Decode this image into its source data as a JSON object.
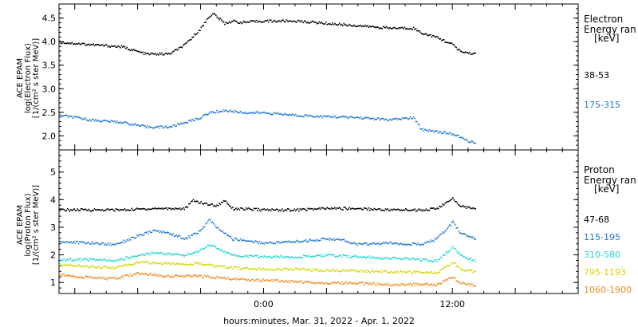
{
  "xlabel": "hours:minutes, Mar. 31, 2022 - Apr. 1, 2022",
  "x_ticks": [
    "0:00",
    "12:00"
  ],
  "chart_data": [
    {
      "type": "scatter",
      "ylabel_lines": [
        "ACE EPAM",
        "log(Electron Flux)",
        "[1/(cm² s ster MeV)]"
      ],
      "ylim": [
        1.7,
        4.8
      ],
      "y_ticks": [
        "2.0",
        "2.5",
        "3.0",
        "3.5",
        "4.0",
        "4.5"
      ],
      "xlim_hours": [
        -13,
        20
      ],
      "legend_title": [
        "Electron",
        "Energy ran",
        "[keV]"
      ],
      "series": [
        {
          "name": "38-53",
          "color": "#000000",
          "x": [
            -13,
            -11,
            -9,
            -7.5,
            -6,
            -5,
            -4,
            -3.5,
            -3.2,
            -2.5,
            -2,
            -1.5,
            0,
            2,
            4,
            6,
            8,
            9.5,
            10,
            11,
            12,
            12.5,
            13.5
          ],
          "y": [
            4.0,
            3.95,
            3.9,
            3.75,
            3.75,
            3.95,
            4.3,
            4.55,
            4.6,
            4.4,
            4.45,
            4.42,
            4.45,
            4.45,
            4.4,
            4.35,
            4.3,
            4.3,
            4.2,
            4.1,
            3.95,
            3.8,
            3.75
          ]
        },
        {
          "name": "175-315",
          "color": "#1e78d2",
          "x": [
            -13,
            -11,
            -9,
            -7.5,
            -6,
            -5,
            -4,
            -3.5,
            -2.5,
            -1,
            0,
            2,
            4,
            6,
            8,
            9.5,
            10,
            11,
            12,
            13,
            13.5
          ],
          "y": [
            2.45,
            2.35,
            2.3,
            2.2,
            2.2,
            2.3,
            2.4,
            2.5,
            2.55,
            2.5,
            2.5,
            2.45,
            2.42,
            2.4,
            2.35,
            2.4,
            2.15,
            2.1,
            2.05,
            1.9,
            1.85
          ]
        }
      ]
    },
    {
      "type": "scatter",
      "ylabel_lines": [
        "ACE EPAM",
        "log(Proton Flux)",
        "[1/(cm² s ster MeV)]"
      ],
      "ylim": [
        0.6,
        5.8
      ],
      "y_ticks": [
        "1",
        "2",
        "3",
        "4",
        "5"
      ],
      "xlim_hours": [
        -13,
        20
      ],
      "legend_title": [
        "Proton",
        "Energy ran",
        "[keV]"
      ],
      "series": [
        {
          "name": "47-68",
          "color": "#000000",
          "x": [
            -13,
            -11,
            -9,
            -7,
            -5,
            -4.5,
            -4,
            -3,
            -2.5,
            -2,
            0,
            2,
            4,
            6,
            8,
            10,
            11,
            12,
            12.5,
            13.5
          ],
          "y": [
            3.65,
            3.65,
            3.65,
            3.7,
            3.7,
            4.0,
            3.9,
            3.8,
            4.0,
            3.7,
            3.65,
            3.65,
            3.7,
            3.7,
            3.65,
            3.65,
            3.7,
            4.05,
            3.8,
            3.65
          ]
        },
        {
          "name": "115-195",
          "color": "#1e78d2",
          "x": [
            -13,
            -11,
            -9.5,
            -8,
            -7,
            -6,
            -5,
            -4,
            -3.5,
            -3,
            -2,
            0,
            2,
            4,
            5,
            6,
            8,
            10,
            11,
            12,
            12.5,
            13.5
          ],
          "y": [
            2.5,
            2.45,
            2.4,
            2.7,
            2.9,
            2.8,
            2.6,
            2.9,
            3.3,
            3.0,
            2.6,
            2.45,
            2.5,
            2.6,
            2.55,
            2.4,
            2.45,
            2.4,
            2.6,
            3.2,
            2.8,
            2.6
          ]
        },
        {
          "name": "310-580",
          "color": "#22d5d5",
          "x": [
            -13,
            -11,
            -9.5,
            -8,
            -7,
            -5,
            -4,
            -3.5,
            -2,
            0,
            2,
            4,
            6,
            8,
            10,
            11,
            12,
            12.5,
            13.5
          ],
          "y": [
            1.85,
            1.85,
            1.8,
            2.0,
            2.1,
            2.0,
            2.2,
            2.4,
            2.0,
            1.95,
            1.95,
            2.0,
            1.95,
            1.9,
            1.85,
            1.8,
            2.3,
            2.0,
            1.8
          ]
        },
        {
          "name": "795-1193",
          "color": "#d6d600",
          "x": [
            -13,
            -11,
            -9.5,
            -8,
            -6,
            -4,
            -3,
            -2,
            0,
            2,
            4,
            6,
            8,
            10,
            11,
            12,
            12.5,
            13.5
          ],
          "y": [
            1.65,
            1.6,
            1.55,
            1.75,
            1.7,
            1.7,
            1.6,
            1.55,
            1.5,
            1.5,
            1.45,
            1.45,
            1.4,
            1.4,
            1.38,
            1.75,
            1.5,
            1.4
          ]
        },
        {
          "name": "1060-1900",
          "color": "#f08a1e",
          "x": [
            -13,
            -11,
            -9.5,
            -8,
            -6,
            -4,
            -3,
            -2,
            0,
            2,
            4,
            6,
            8,
            10,
            11,
            12,
            12.5,
            13.5
          ],
          "y": [
            1.3,
            1.2,
            1.15,
            1.35,
            1.25,
            1.25,
            1.2,
            1.15,
            1.1,
            1.05,
            1.0,
            1.0,
            0.95,
            0.95,
            0.95,
            1.2,
            1.0,
            0.9
          ]
        }
      ]
    }
  ]
}
